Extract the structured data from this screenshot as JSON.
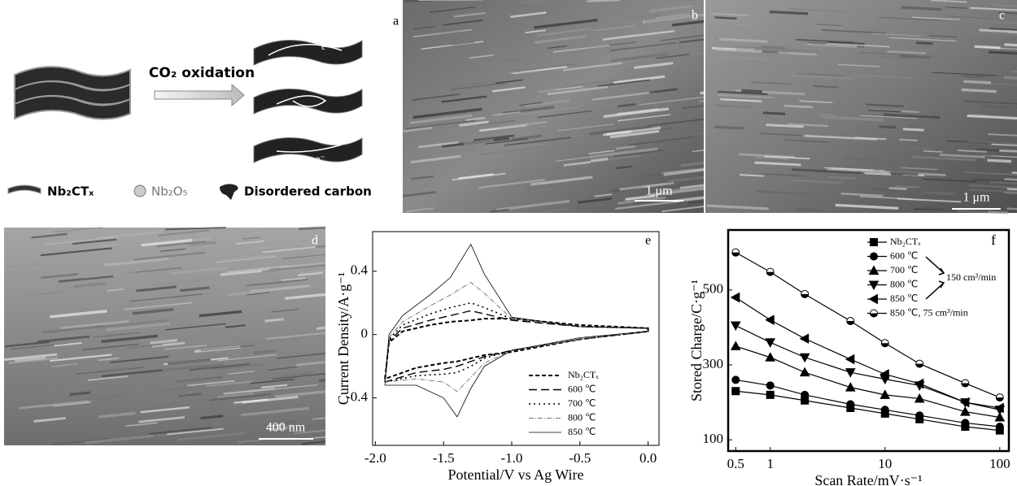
{
  "panel_labels": [
    "a",
    "b",
    "c",
    "d",
    "e",
    "f"
  ],
  "schematic": {
    "arrow_label": "CO₂ oxidation",
    "electron_labels": [
      "e⁻",
      "e⁻",
      "e⁻"
    ],
    "legend": [
      "Nb₂CTₓ",
      "Nb₂O₅",
      "Disordered carbon"
    ]
  },
  "scale_bars": [
    "1 μm",
    "1 μm",
    "400 nm"
  ],
  "chart_data": [
    {
      "type": "line",
      "x_label": "Potential/V vs Ag Wire",
      "y_label": "Current Density/A·g⁻¹",
      "xlim": [
        -2.02,
        0.08
      ],
      "ylim": [
        -0.7,
        0.65
      ],
      "xticks": [
        {
          "value": -2,
          "label": "-2.0"
        },
        -1.5,
        {
          "value": -1,
          "label": "-1.0"
        },
        -0.5,
        {
          "value": 0,
          "label": "0.0"
        }
      ],
      "yticks": [
        0.4,
        0,
        -0.4
      ],
      "series": [
        {
          "name": "Nb₂CTₓ",
          "color": "#000000",
          "dash": "5,3",
          "width": 2,
          "x": [
            -1.93,
            -1.9,
            -1.8,
            -1.6,
            -1.45,
            -1.3,
            -1.2,
            -1.0,
            -0.5,
            0,
            0,
            -0.5,
            -1.0,
            -1.2,
            -1.3,
            -1.4,
            -1.5,
            -1.7,
            -1.93
          ],
          "values": [
            -0.28,
            -0.05,
            0.02,
            0.06,
            0.08,
            0.09,
            0.1,
            0.1,
            0.06,
            0.04,
            0.02,
            -0.03,
            -0.11,
            -0.13,
            -0.15,
            -0.17,
            -0.18,
            -0.21,
            -0.28
          ]
        },
        {
          "name": "600 ℃",
          "color": "#000000",
          "dash": "10,5",
          "width": 1.4,
          "x": [
            -1.93,
            -1.9,
            -1.8,
            -1.6,
            -1.45,
            -1.3,
            -1.2,
            -1.0,
            -0.5,
            0,
            0,
            -0.5,
            -1.0,
            -1.2,
            -1.3,
            -1.4,
            -1.5,
            -1.7,
            -1.93
          ],
          "values": [
            -0.3,
            -0.04,
            0.04,
            0.09,
            0.12,
            0.15,
            0.13,
            0.09,
            0.05,
            0.04,
            0.02,
            -0.03,
            -0.1,
            -0.14,
            -0.17,
            -0.2,
            -0.22,
            -0.24,
            -0.3
          ]
        },
        {
          "name": "700 ℃",
          "color": "#000000",
          "dash": "2,4",
          "width": 1.6,
          "x": [
            -1.93,
            -1.9,
            -1.8,
            -1.6,
            -1.45,
            -1.3,
            -1.2,
            -1.0,
            -0.5,
            0,
            0,
            -0.5,
            -1.0,
            -1.2,
            -1.3,
            -1.4,
            -1.5,
            -1.7,
            -1.93
          ],
          "values": [
            -0.3,
            -0.03,
            0.06,
            0.13,
            0.17,
            0.2,
            0.17,
            0.1,
            0.05,
            0.04,
            0.02,
            -0.03,
            -0.1,
            -0.15,
            -0.2,
            -0.24,
            -0.25,
            -0.26,
            -0.3
          ]
        },
        {
          "name": "800 ℃",
          "color": "#777777",
          "dash": "6,2,1,2",
          "width": 1,
          "x": [
            -1.93,
            -1.9,
            -1.8,
            -1.6,
            -1.45,
            -1.3,
            -1.2,
            -1.0,
            -0.5,
            0,
            0,
            -0.5,
            -1.0,
            -1.2,
            -1.3,
            -1.4,
            -1.5,
            -1.7,
            -1.93
          ],
          "values": [
            -0.3,
            -0.02,
            0.08,
            0.18,
            0.25,
            0.33,
            0.26,
            0.1,
            0.05,
            0.04,
            0.02,
            -0.03,
            -0.1,
            -0.18,
            -0.27,
            -0.36,
            -0.3,
            -0.28,
            -0.3
          ]
        },
        {
          "name": "850 ℃",
          "color": "#000000",
          "dash": "none",
          "width": 0.8,
          "x": [
            -1.93,
            -1.9,
            -1.8,
            -1.6,
            -1.45,
            -1.3,
            -1.2,
            -1.0,
            -0.5,
            0,
            0,
            -0.5,
            -1.0,
            -1.2,
            -1.3,
            -1.4,
            -1.5,
            -1.7,
            -1.93
          ],
          "values": [
            -0.32,
            0.0,
            0.12,
            0.25,
            0.36,
            0.57,
            0.38,
            0.11,
            0.05,
            0.04,
            0.02,
            -0.02,
            -0.1,
            -0.2,
            -0.34,
            -0.52,
            -0.4,
            -0.32,
            -0.32
          ]
        }
      ]
    },
    {
      "type": "line",
      "x_label": "Scan Rate/mV·s⁻¹",
      "y_label": "Stored Charge/C·g⁻¹",
      "x_scale": "log",
      "xlim": [
        0.43,
        120
      ],
      "ylim": [
        70,
        660
      ],
      "xticks": [
        0.5,
        1,
        10,
        100
      ],
      "yticks": [
        100,
        300,
        500
      ],
      "annotation": "150 cm³/min",
      "x": [
        0.5,
        1,
        2,
        5,
        10,
        20,
        50,
        100
      ],
      "series": [
        {
          "name": "Nb₂CTₓ",
          "color": "#000000",
          "marker": "square",
          "values": [
            230,
            220,
            205,
            185,
            170,
            155,
            135,
            125
          ]
        },
        {
          "name": "600 ℃",
          "color": "#000000",
          "marker": "circle",
          "values": [
            260,
            245,
            220,
            195,
            180,
            165,
            145,
            135
          ]
        },
        {
          "name": "700 ℃",
          "color": "#000000",
          "marker": "triangle-up",
          "values": [
            350,
            320,
            280,
            240,
            220,
            210,
            175,
            160
          ]
        },
        {
          "name": "800 ℃",
          "color": "#000000",
          "marker": "triangle-down",
          "values": [
            405,
            360,
            320,
            280,
            262,
            245,
            200,
            180
          ]
        },
        {
          "name": "850 ℃",
          "color": "#000000",
          "marker": "triangle-left",
          "values": [
            480,
            420,
            370,
            315,
            275,
            250,
            200,
            185
          ]
        },
        {
          "name": "850 ℃, 75 cm³/min",
          "color": "#000000",
          "marker": "half-circle",
          "values": [
            600,
            548,
            489,
            417,
            358,
            303,
            251,
            213
          ]
        }
      ]
    }
  ]
}
